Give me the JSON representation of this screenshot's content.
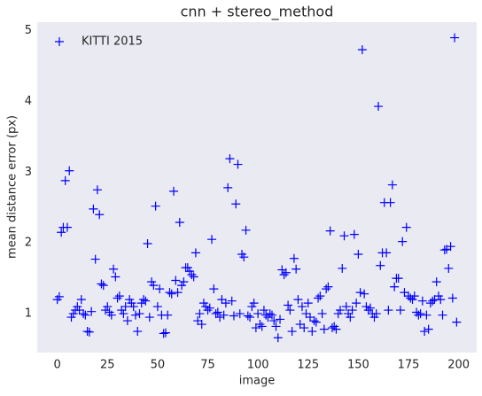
{
  "chart_data": {
    "type": "scatter",
    "title": "cnn + stereo_method",
    "xlabel": "image",
    "ylabel": "mean distance error (px)",
    "series": [
      {
        "name": "KITTI 2015",
        "color": "#0000ff",
        "marker": "+",
        "x": [
          0,
          1,
          2,
          3,
          4,
          5,
          6,
          7,
          8,
          9,
          10,
          11,
          12,
          13,
          14,
          15,
          16,
          17,
          18,
          19,
          20,
          21,
          22,
          23,
          24,
          25,
          26,
          27,
          28,
          29,
          30,
          31,
          32,
          33,
          34,
          35,
          36,
          37,
          38,
          39,
          40,
          41,
          42,
          43,
          44,
          45,
          46,
          47,
          48,
          49,
          50,
          51,
          52,
          53,
          54,
          55,
          56,
          57,
          58,
          59,
          60,
          61,
          62,
          63,
          64,
          65,
          66,
          67,
          68,
          69,
          70,
          71,
          72,
          73,
          74,
          75,
          76,
          77,
          78,
          79,
          80,
          81,
          82,
          83,
          84,
          85,
          86,
          87,
          88,
          89,
          90,
          91,
          92,
          93,
          94,
          95,
          96,
          97,
          98,
          99,
          100,
          101,
          102,
          103,
          104,
          105,
          106,
          107,
          108,
          109,
          110,
          111,
          112,
          113,
          114,
          115,
          116,
          117,
          118,
          119,
          120,
          121,
          122,
          123,
          124,
          125,
          126,
          127,
          128,
          129,
          130,
          131,
          132,
          133,
          134,
          135,
          136,
          137,
          138,
          139,
          140,
          141,
          142,
          143,
          144,
          145,
          146,
          147,
          148,
          149,
          150,
          151,
          152,
          153,
          154,
          155,
          156,
          157,
          158,
          159,
          160,
          161,
          162,
          163,
          164,
          165,
          166,
          167,
          168,
          169,
          170,
          171,
          172,
          173,
          174,
          175,
          176,
          177,
          178,
          179,
          180,
          181,
          182,
          183,
          184,
          185,
          186,
          187,
          188,
          189,
          190,
          191,
          192,
          193,
          194,
          195,
          196,
          197,
          198,
          199
        ],
        "values": [
          1.2,
          1.24,
          2.15,
          2.22,
          2.88,
          2.22,
          3.02,
          0.95,
          1.0,
          1.05,
          1.1,
          1.05,
          1.2,
          1.0,
          0.98,
          0.75,
          0.74,
          1.03,
          2.48,
          1.77,
          2.75,
          2.4,
          1.42,
          1.4,
          1.05,
          1.1,
          1.02,
          0.98,
          1.63,
          1.52,
          1.22,
          1.25,
          1.05,
          1.0,
          1.1,
          0.9,
          1.2,
          1.15,
          1.1,
          0.98,
          0.75,
          1.0,
          1.15,
          1.2,
          1.18,
          1.99,
          0.95,
          1.45,
          1.4,
          2.52,
          1.1,
          1.35,
          0.98,
          0.72,
          0.73,
          0.98,
          1.3,
          1.28,
          2.73,
          1.47,
          1.3,
          2.29,
          1.4,
          1.45,
          1.65,
          1.65,
          1.6,
          1.55,
          1.52,
          1.86,
          0.9,
          1.0,
          0.85,
          1.15,
          1.1,
          1.05,
          1.08,
          2.05,
          1.35,
          1.0,
          1.02,
          0.95,
          1.2,
          0.98,
          1.15,
          2.78,
          3.19,
          1.18,
          0.97,
          2.55,
          3.11,
          1.0,
          1.84,
          1.8,
          2.18,
          0.97,
          0.95,
          1.1,
          1.15,
          0.8,
          1.0,
          0.85,
          0.82,
          1.05,
          0.98,
          0.95,
          1.0,
          0.98,
          0.9,
          0.82,
          0.66,
          0.92,
          1.62,
          1.55,
          1.58,
          1.12,
          1.05,
          0.75,
          1.78,
          1.63,
          1.2,
          0.85,
          1.1,
          0.8,
          1.0,
          1.15,
          0.95,
          0.75,
          0.9,
          0.88,
          1.22,
          1.25,
          1.0,
          0.78,
          1.35,
          1.38,
          2.17,
          0.8,
          0.82,
          0.78,
          1.0,
          1.05,
          1.64,
          2.1,
          1.1,
          1.0,
          0.95,
          1.05,
          2.12,
          1.15,
          1.84,
          1.3,
          4.73,
          1.28,
          1.1,
          1.05,
          1.08,
          1.0,
          0.95,
          1.0,
          3.93,
          1.68,
          1.86,
          2.57,
          1.86,
          1.05,
          2.57,
          2.82,
          1.38,
          1.5,
          1.5,
          1.05,
          2.02,
          1.3,
          2.22,
          1.25,
          1.22,
          1.2,
          1.25,
          1.02,
          0.98,
          1.0,
          1.18,
          0.75,
          0.98,
          0.78,
          1.15,
          1.18,
          1.2,
          1.45,
          1.25,
          1.2,
          0.98,
          1.9,
          1.91,
          1.64,
          1.95,
          1.22,
          4.9,
          0.88
        ]
      }
    ],
    "xlim": [
      -10,
      209
    ],
    "ylim": [
      0.45,
      5.12
    ],
    "xticks": [
      0,
      25,
      50,
      75,
      100,
      125,
      150,
      175,
      200
    ],
    "yticks": [
      1,
      2,
      3,
      4,
      5
    ],
    "grid": false,
    "legend": "upper left",
    "background": "#eaeaf2"
  }
}
